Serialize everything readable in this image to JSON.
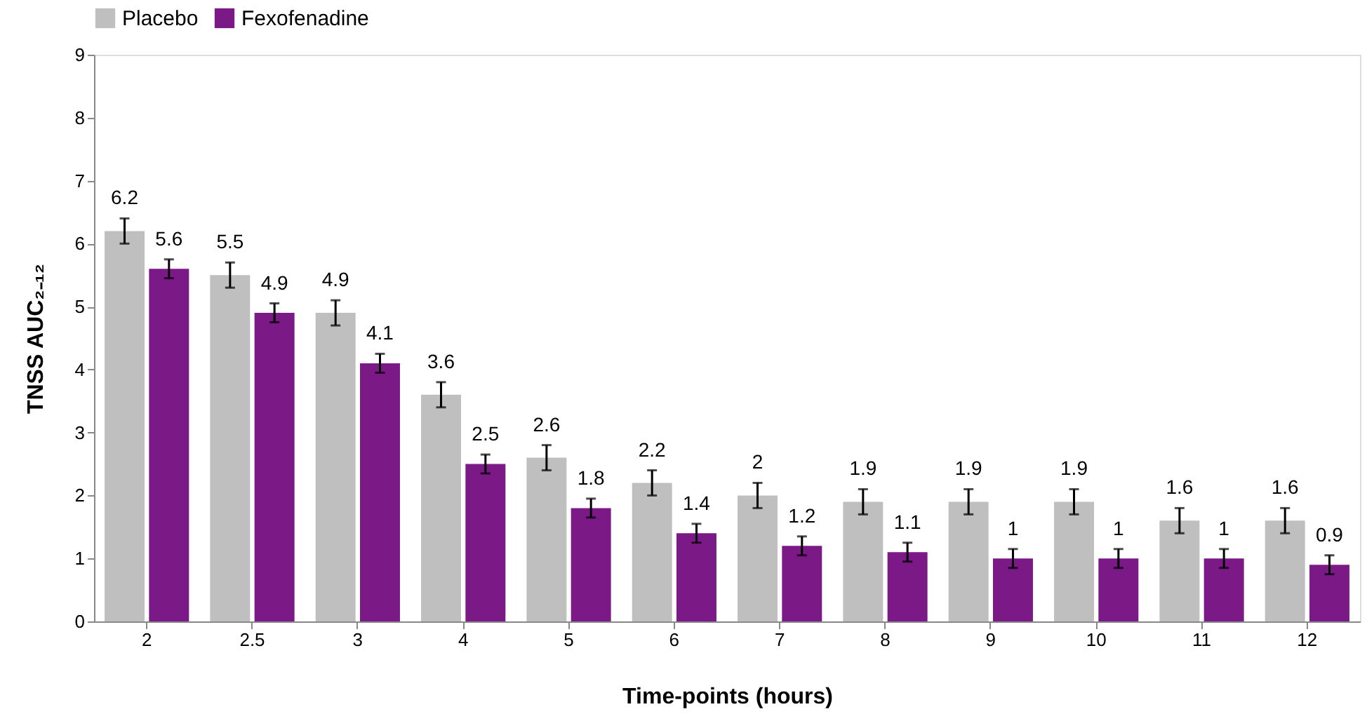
{
  "chart_data": {
    "type": "bar",
    "xlabel": "Time-points (hours)",
    "ylabel": "TNSS AUC₂₋₁₂",
    "categories": [
      "2",
      "2.5",
      "3",
      "4",
      "5",
      "6",
      "7",
      "8",
      "9",
      "10",
      "11",
      "12"
    ],
    "series": [
      {
        "name": "Placebo",
        "color": "#bfbfbf",
        "values": [
          6.2,
          5.5,
          4.9,
          3.6,
          2.6,
          2.2,
          2,
          1.9,
          1.9,
          1.9,
          1.6,
          1.6
        ],
        "errors": [
          0.2,
          0.2,
          0.2,
          0.2,
          0.2,
          0.2,
          0.2,
          0.2,
          0.2,
          0.2,
          0.2,
          0.2
        ]
      },
      {
        "name": "Fexofenadine",
        "color": "#7b1a87",
        "values": [
          5.6,
          4.9,
          4.1,
          2.5,
          1.8,
          1.4,
          1.2,
          1.1,
          1,
          1,
          1,
          0.9
        ],
        "errors": [
          0.15,
          0.15,
          0.15,
          0.15,
          0.15,
          0.15,
          0.15,
          0.15,
          0.15,
          0.15,
          0.15,
          0.15
        ]
      }
    ],
    "ylim": [
      0,
      9
    ],
    "yticks": [
      0,
      1,
      2,
      3,
      4,
      5,
      6,
      7,
      8,
      9
    ],
    "data_labels": true,
    "legend": "top",
    "grid": false
  }
}
